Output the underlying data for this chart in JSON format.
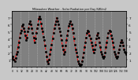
{
  "title": "Milwaukee Weather - Solar Radiation per Day KW/m2",
  "background_color": "#c8c8c8",
  "plot_bg": "#808080",
  "line_color": "#ff0000",
  "dot_color": "#000000",
  "grid_color": "#c0c0c0",
  "ylim": [
    0,
    8
  ],
  "yticks": [
    1,
    2,
    3,
    4,
    5,
    6,
    7
  ],
  "values": [
    1.2,
    1.5,
    1.0,
    0.8,
    1.3,
    1.8,
    2.2,
    2.8,
    3.5,
    4.2,
    4.8,
    5.2,
    5.8,
    6.0,
    5.5,
    5.0,
    4.5,
    3.8,
    4.2,
    5.0,
    5.5,
    6.2,
    6.5,
    6.0,
    5.5,
    4.8,
    4.2,
    3.5,
    4.0,
    4.8,
    5.5,
    6.0,
    6.8,
    7.2,
    6.8,
    6.2,
    5.5,
    5.0,
    4.3,
    3.8,
    3.0,
    2.2,
    1.5,
    0.8,
    0.5,
    1.0,
    1.8,
    2.5,
    3.2,
    4.0,
    4.8,
    5.5,
    6.0,
    6.5,
    7.0,
    6.5,
    6.0,
    5.5,
    5.0,
    4.5,
    3.8,
    3.0,
    2.5,
    1.8,
    2.2,
    3.0,
    3.8,
    4.5,
    5.2,
    5.8,
    6.2,
    6.5,
    6.0,
    5.5,
    4.8,
    4.0,
    3.2,
    2.5,
    2.0,
    1.5,
    0.8,
    0.5,
    0.3,
    0.2,
    0.4,
    0.8,
    1.4,
    2.0,
    2.8,
    3.5,
    4.2,
    4.8,
    5.2,
    5.0,
    4.5,
    4.0,
    3.5,
    3.0,
    2.5,
    2.0,
    2.5,
    3.2,
    4.0,
    4.5,
    4.8,
    4.2,
    3.5,
    2.8,
    2.2,
    1.8,
    1.5,
    1.2,
    1.5,
    2.0,
    2.8,
    3.5,
    4.2,
    4.8,
    5.2,
    5.0,
    4.5,
    4.0,
    3.5,
    2.8,
    2.2,
    1.8,
    1.5,
    1.2,
    1.5,
    2.0,
    2.5,
    3.0,
    3.5,
    3.8,
    3.5,
    3.0,
    2.5,
    2.2,
    2.0,
    1.8
  ],
  "vline_positions": [
    10,
    20,
    30,
    40,
    50,
    60,
    70,
    80,
    90,
    100,
    110,
    120
  ],
  "xtick_step": 6
}
